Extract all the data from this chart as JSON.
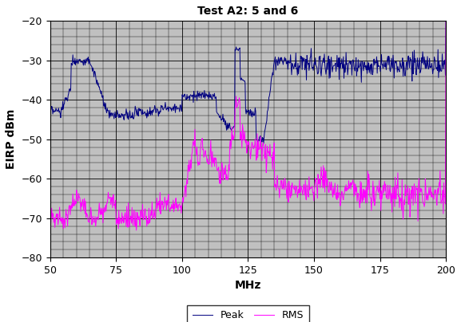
{
  "title": "Test A2: 5 and 6",
  "xlabel": "MHz",
  "ylabel": "EIRP dBm",
  "xlim": [
    50,
    200
  ],
  "ylim": [
    -80,
    -20
  ],
  "yticks": [
    -80,
    -70,
    -60,
    -50,
    -40,
    -30,
    -20
  ],
  "xticks": [
    50,
    75,
    100,
    125,
    150,
    175,
    200
  ],
  "peak_color": "#000080",
  "rms_color": "#FF00FF",
  "bg_color": "#C0C0C0",
  "legend_labels": [
    "Peak",
    "RMS"
  ],
  "title_fontsize": 10,
  "axis_label_fontsize": 10,
  "tick_fontsize": 9,
  "figsize": [
    5.77,
    4.04
  ],
  "dpi": 100
}
